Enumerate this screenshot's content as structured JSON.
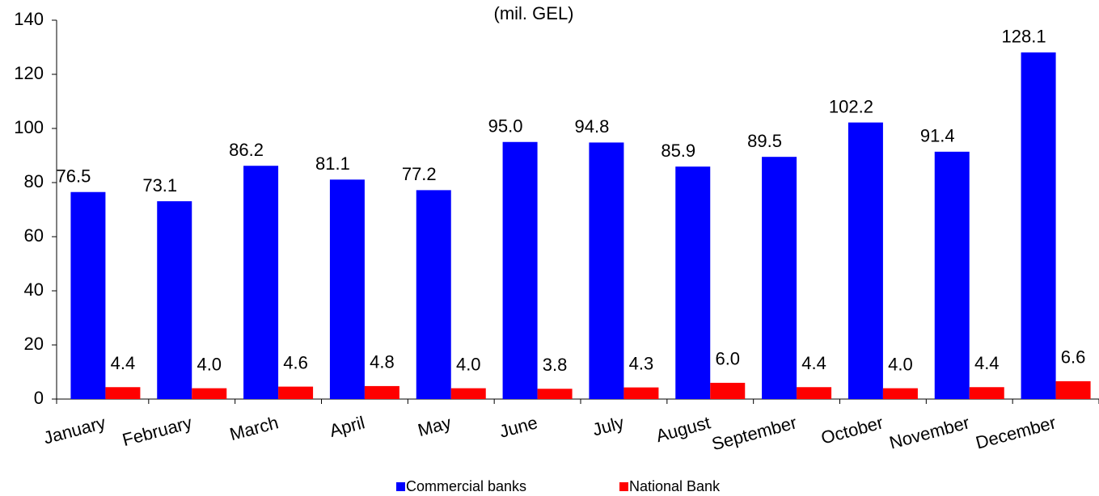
{
  "chart_data": {
    "type": "bar",
    "subtitle": "(mil. GEL)",
    "categories": [
      "January",
      "February",
      "March",
      "April",
      "May",
      "June",
      "July",
      "August",
      "September",
      "October",
      "November",
      "December"
    ],
    "series": [
      {
        "name": "Commercial banks",
        "color": "#0000ff",
        "values": [
          76.5,
          73.1,
          86.2,
          81.1,
          77.2,
          95.0,
          94.8,
          85.9,
          89.5,
          102.2,
          91.4,
          128.1
        ],
        "value_labels": [
          "76.5",
          "73.1",
          "86.2",
          "81.1",
          "77.2",
          "95.0",
          "94.8",
          "85.9",
          "89.5",
          "102.2",
          "91.4",
          "128.1"
        ]
      },
      {
        "name": "National Bank",
        "color": "#ff0000",
        "values": [
          4.4,
          4.0,
          4.6,
          4.8,
          4.0,
          3.8,
          4.3,
          6.0,
          4.4,
          4.0,
          4.4,
          6.6
        ],
        "value_labels": [
          "4.4",
          "4.0",
          "4.6",
          "4.8",
          "4.0",
          "3.8",
          "4.3",
          "6.0",
          "4.4",
          "4.0",
          "4.4",
          "6.6"
        ]
      }
    ],
    "ylim": [
      0,
      140
    ],
    "yticks": [
      0,
      20,
      40,
      60,
      80,
      100,
      120,
      140
    ],
    "grid": false,
    "legend": "bottom"
  }
}
